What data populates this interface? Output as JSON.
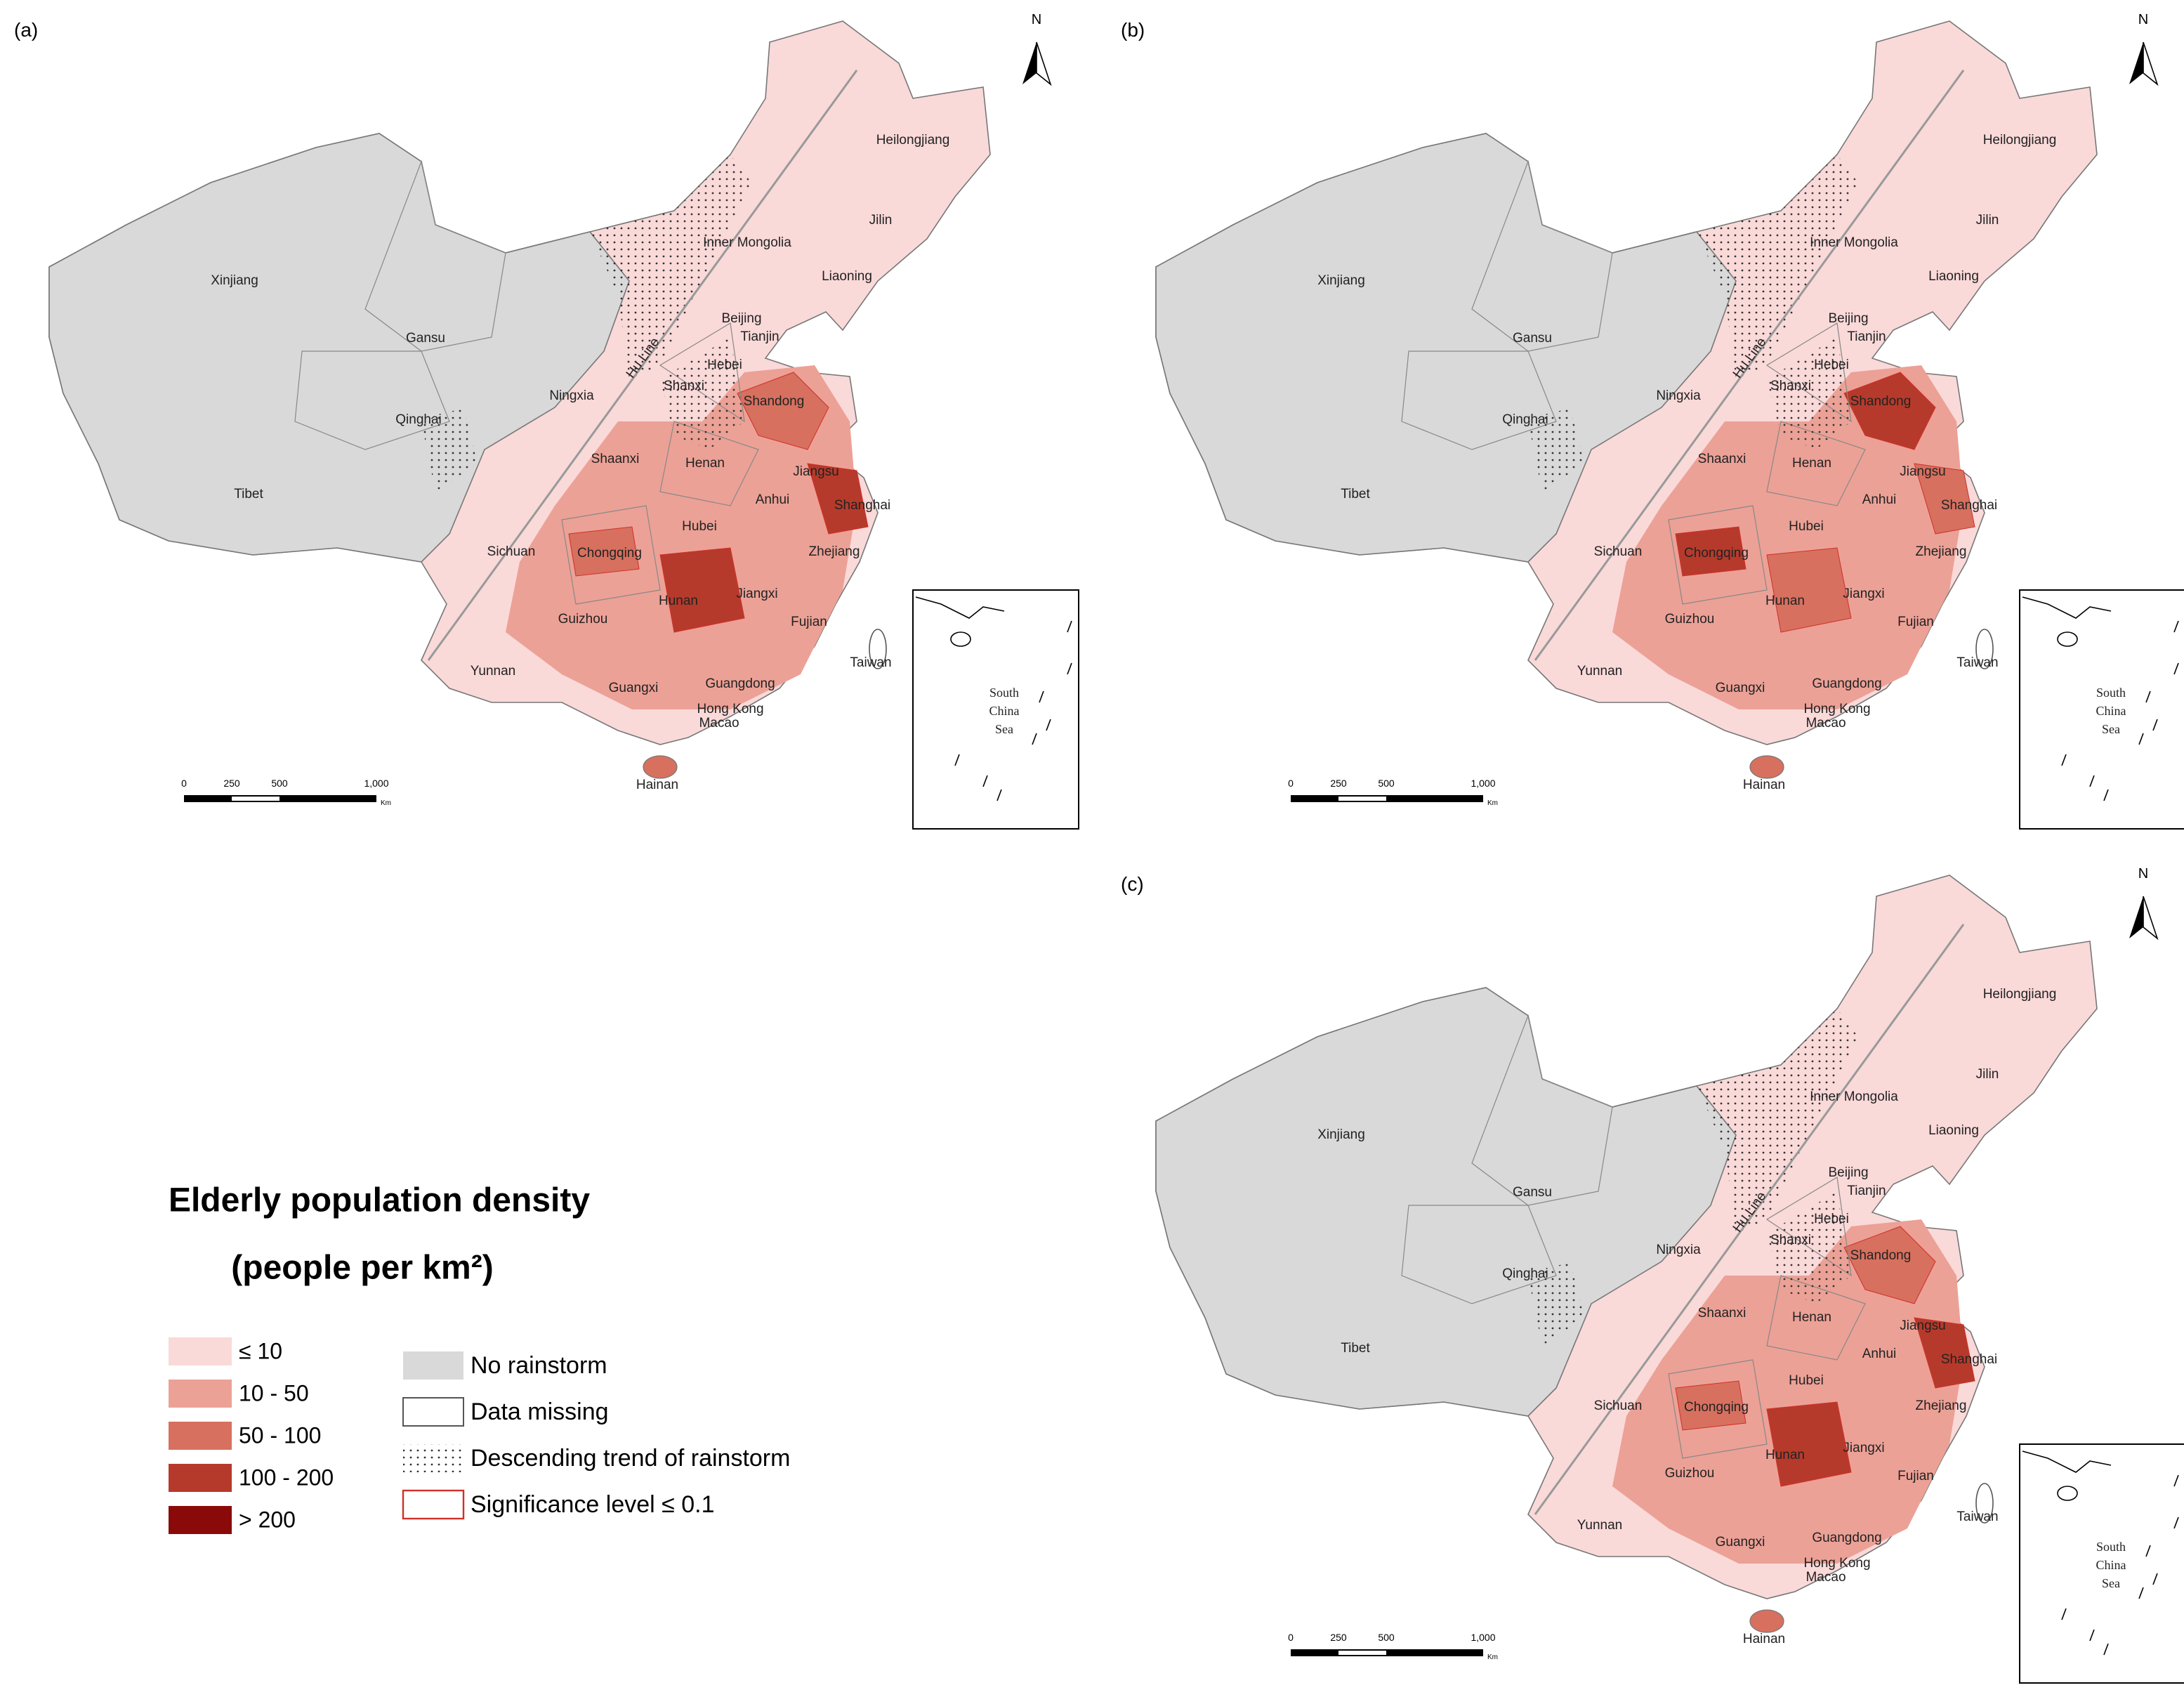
{
  "panels": [
    {
      "label": "(a)"
    },
    {
      "label": "(b)"
    },
    {
      "label": "(c)"
    }
  ],
  "map": {
    "provinces": [
      "Xinjiang",
      "Gansu",
      "Qinghai",
      "Tibet",
      "Inner Mongolia",
      "Heilongjiang",
      "Jilin",
      "Liaoning",
      "Beijing",
      "Tianjin",
      "Hebei",
      "Ningxia",
      "Shanxi",
      "Shandong",
      "Shaanxi",
      "Henan",
      "Jiangsu",
      "Anhui",
      "Shanghai",
      "Hubei",
      "Sichuan",
      "Chongqing",
      "Zhejiang",
      "Jiangxi",
      "Hunan",
      "Guizhou",
      "Fujian",
      "Taiwan",
      "Yunnan",
      "Guangxi",
      "Guangdong",
      "Hong Kong",
      "Macao",
      "Hainan"
    ],
    "hu_line": "Hu Line",
    "north": "N",
    "inset": [
      "South",
      "China",
      "Sea"
    ],
    "scale_bar": {
      "labels": [
        "0",
        "250",
        "500",
        "1,000"
      ],
      "unit": "Km"
    }
  },
  "legend": {
    "title": "Elderly population density",
    "subtitle": "(people per km²)",
    "classes": [
      {
        "label": "≤ 10",
        "color": "#fad9d9"
      },
      {
        "label": "10 - 50",
        "color": "#eca196"
      },
      {
        "label": "50 - 100",
        "color": "#d7705f"
      },
      {
        "label": "100 - 200",
        "color": "#b63a2b"
      },
      {
        "label": "> 200",
        "color": "#8a0a0a"
      }
    ],
    "symbols": [
      {
        "label": "No rainstorm",
        "color": "#d9d9d9"
      },
      {
        "label": "Data missing",
        "color": "#ffffff"
      },
      {
        "label": "Descending trend of rainstorm"
      },
      {
        "label": "Significance level  ≤  0.1",
        "color": "#d0302a"
      }
    ]
  }
}
